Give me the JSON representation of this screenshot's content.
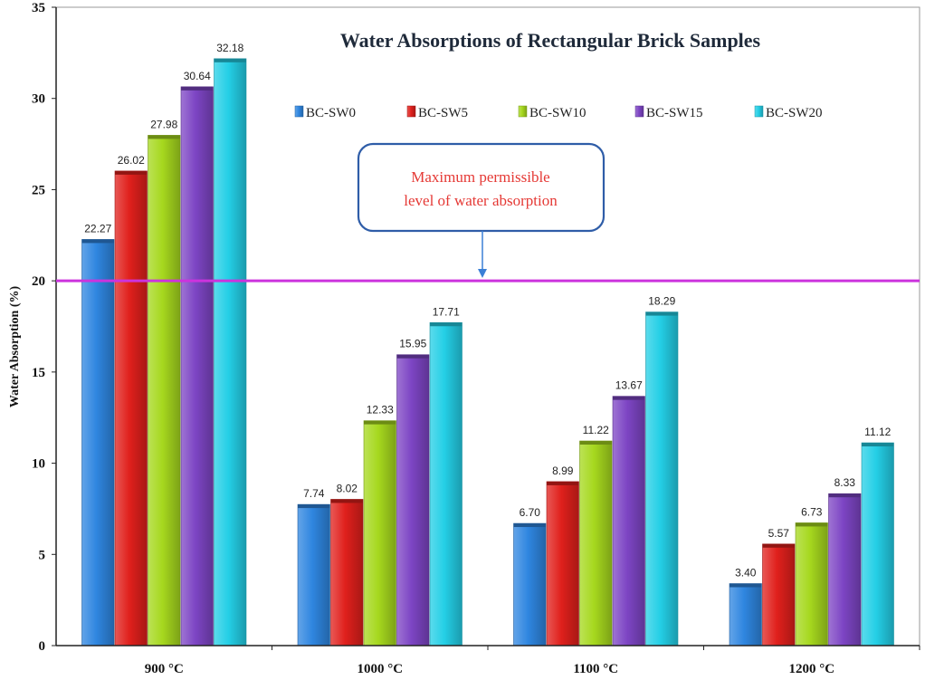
{
  "chart_data": {
    "type": "bar",
    "title": "Water Absorptions of Rectangular Brick Samples",
    "xlabel": "",
    "ylabel": "Water  Absorption (%)",
    "ylim": [
      0,
      35
    ],
    "yticks": [
      0,
      5,
      10,
      15,
      20,
      25,
      30,
      35
    ],
    "categories": [
      "900 °C",
      "1000 °C",
      "1100 °C",
      "1200 °C"
    ],
    "series": [
      {
        "name": "BC-SW0",
        "color": "#2f86e0",
        "values": [
          22.27,
          7.74,
          6.7,
          3.4
        ],
        "labels": [
          "22.27",
          "7.74",
          "6.70",
          "3.40"
        ]
      },
      {
        "name": "BC-SW5",
        "color": "#e0201c",
        "values": [
          26.02,
          8.02,
          8.99,
          5.57
        ],
        "labels": [
          "26.02",
          "8.02",
          "8.99",
          "5.57"
        ]
      },
      {
        "name": "BC-SW10",
        "color": "#a6d81e",
        "values": [
          27.98,
          12.33,
          11.22,
          6.73
        ],
        "labels": [
          "27.98",
          "12.33",
          "11.22",
          "6.73"
        ]
      },
      {
        "name": "BC-SW15",
        "color": "#7d45c4",
        "values": [
          30.64,
          15.95,
          13.67,
          8.33
        ],
        "labels": [
          "30.64",
          "15.95",
          "13.67",
          "8.33"
        ]
      },
      {
        "name": "BC-SW20",
        "color": "#24cfe6",
        "values": [
          32.18,
          17.71,
          18.29,
          11.12
        ],
        "labels": [
          "32.18",
          "17.71",
          "18.29",
          "11.12"
        ]
      }
    ],
    "reference_line": {
      "value": 20,
      "color": "#cc33dd"
    },
    "annotation": {
      "lines": [
        "Maximum permissible",
        "level of water absorption"
      ],
      "text_color": "#e53935",
      "border_color": "#2f5da8"
    },
    "legend_position": "top"
  }
}
